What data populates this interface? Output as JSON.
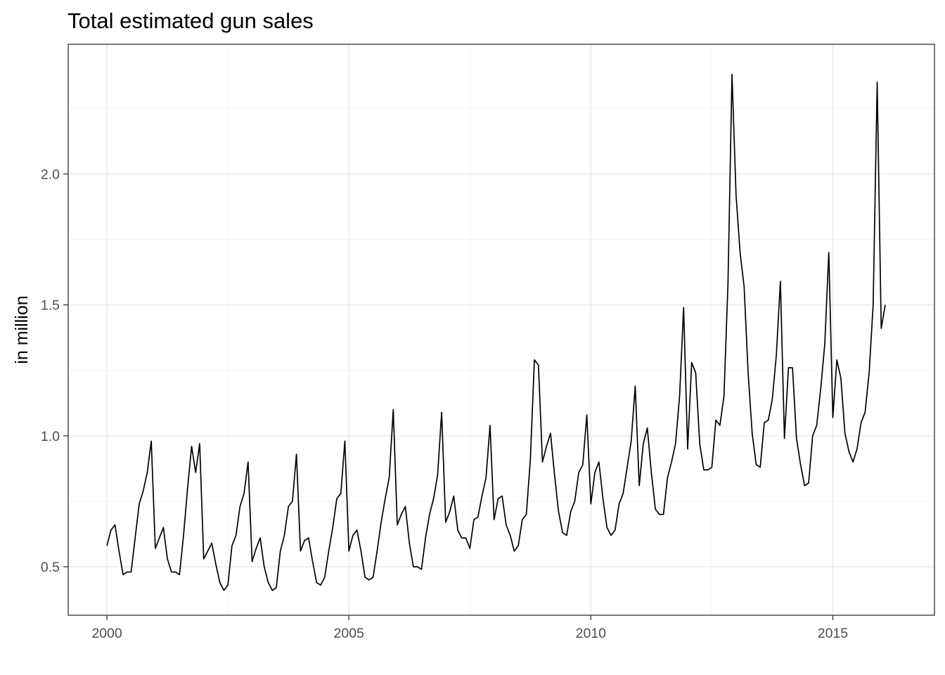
{
  "chart_data": {
    "type": "line",
    "title": "Total estimated gun sales",
    "xlabel": "",
    "ylabel": "in million",
    "xlim": [
      1999.2,
      2017.1
    ],
    "ylim": [
      0.315,
      2.495
    ],
    "x_ticks": [
      2000,
      2005,
      2010,
      2015
    ],
    "x_tick_labels": [
      "2000",
      "2005",
      "2010",
      "2015"
    ],
    "y_ticks": [
      0.5,
      1.0,
      1.5,
      2.0
    ],
    "y_tick_labels": [
      "0.5",
      "1.0",
      "1.5",
      "2.0"
    ],
    "grid": true,
    "legend": "none",
    "start": "2000-01",
    "frequency": "monthly",
    "series": [
      {
        "values": [
          0.58,
          0.64,
          0.66,
          0.56,
          0.47,
          0.48,
          0.48,
          0.61,
          0.74,
          0.79,
          0.86,
          0.98,
          0.57,
          0.61,
          0.65,
          0.53,
          0.48,
          0.48,
          0.47,
          0.62,
          0.8,
          0.96,
          0.86,
          0.97,
          0.53,
          0.56,
          0.59,
          0.51,
          0.44,
          0.41,
          0.43,
          0.58,
          0.62,
          0.73,
          0.78,
          0.9,
          0.52,
          0.57,
          0.61,
          0.5,
          0.44,
          0.41,
          0.42,
          0.56,
          0.62,
          0.73,
          0.75,
          0.93,
          0.56,
          0.6,
          0.61,
          0.52,
          0.44,
          0.43,
          0.46,
          0.56,
          0.65,
          0.76,
          0.78,
          0.98,
          0.56,
          0.62,
          0.64,
          0.56,
          0.46,
          0.45,
          0.46,
          0.56,
          0.67,
          0.76,
          0.84,
          1.1,
          0.66,
          0.7,
          0.73,
          0.59,
          0.5,
          0.5,
          0.49,
          0.61,
          0.7,
          0.76,
          0.85,
          1.09,
          0.67,
          0.71,
          0.77,
          0.64,
          0.61,
          0.61,
          0.57,
          0.68,
          0.69,
          0.77,
          0.84,
          1.04,
          0.68,
          0.76,
          0.77,
          0.66,
          0.62,
          0.56,
          0.58,
          0.68,
          0.7,
          0.91,
          1.29,
          1.27,
          0.9,
          0.96,
          1.01,
          0.85,
          0.71,
          0.63,
          0.62,
          0.71,
          0.75,
          0.86,
          0.89,
          1.08,
          0.74,
          0.86,
          0.9,
          0.76,
          0.65,
          0.62,
          0.64,
          0.74,
          0.78,
          0.88,
          0.98,
          1.19,
          0.81,
          0.97,
          1.03,
          0.86,
          0.72,
          0.7,
          0.7,
          0.84,
          0.9,
          0.97,
          1.15,
          1.49,
          0.95,
          1.28,
          1.24,
          0.97,
          0.87,
          0.87,
          0.88,
          1.06,
          1.04,
          1.15,
          1.58,
          2.38,
          1.92,
          1.7,
          1.57,
          1.24,
          1.01,
          0.89,
          0.88,
          1.05,
          1.06,
          1.14,
          1.31,
          1.59,
          0.99,
          1.26,
          1.26,
          0.99,
          0.89,
          0.81,
          0.82,
          1.0,
          1.04,
          1.18,
          1.35,
          1.7,
          1.07,
          1.29,
          1.22,
          1.01,
          0.94,
          0.9,
          0.95,
          1.05,
          1.09,
          1.24,
          1.5,
          2.35,
          1.41,
          1.5
        ]
      }
    ]
  }
}
